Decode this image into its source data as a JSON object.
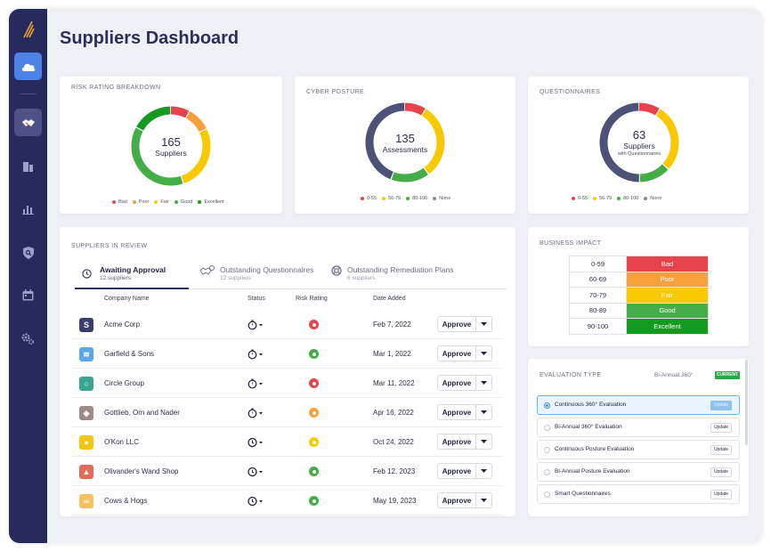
{
  "page": {
    "title": "Suppliers Dashboard"
  },
  "sidebar": {
    "items": [
      {
        "icon": "cloud-icon"
      },
      {
        "icon": "handshake-icon"
      },
      {
        "icon": "building-icon"
      },
      {
        "icon": "bar-chart-icon"
      },
      {
        "icon": "shield-search-icon"
      },
      {
        "icon": "calendar-icon"
      },
      {
        "icon": "settings-icon"
      }
    ]
  },
  "colors": {
    "bad": "#e8434d",
    "poor": "#f8a03c",
    "fair": "#f9c900",
    "good": "#45ad47",
    "excellent": "#149a1f",
    "none": "#4d5378",
    "navy": "#272a5c",
    "accent": "#4a82e6"
  },
  "risk_breakdown": {
    "title": "Risk Rating Breakdown",
    "count": "165",
    "label": "Suppliers",
    "legend": [
      "Bad",
      "Poor",
      "Fair",
      "Good",
      "Excellent"
    ],
    "segments": [
      {
        "name": "Bad",
        "value": 0.08,
        "color": "#e8434d"
      },
      {
        "name": "Poor",
        "value": 0.1,
        "color": "#f8a03c"
      },
      {
        "name": "Fair",
        "value": 0.27,
        "color": "#f9c900"
      },
      {
        "name": "Good",
        "value": 0.38,
        "color": "#45ad47"
      },
      {
        "name": "Excellent",
        "value": 0.17,
        "color": "#149a1f"
      }
    ]
  },
  "cyber_posture": {
    "title": "Cyber Posture",
    "count": "135",
    "label": "Assessments",
    "legend": [
      "0-55",
      "56-79",
      "80-100",
      "None"
    ],
    "segments": [
      {
        "name": "0-55",
        "value": 0.09,
        "color": "#e8434d"
      },
      {
        "name": "56-79",
        "value": 0.31,
        "color": "#f9c900"
      },
      {
        "name": "80-100",
        "value": 0.16,
        "color": "#45ad47"
      },
      {
        "name": "None",
        "value": 0.44,
        "color": "#4d5378"
      }
    ]
  },
  "questionnaires": {
    "title": "Questionnaires",
    "count": "63",
    "label": "Suppliers",
    "sublabel": "with Questionnaires",
    "legend": [
      "0-55",
      "56-79",
      "80-100",
      "None"
    ],
    "segments": [
      {
        "name": "0-55",
        "value": 0.09,
        "color": "#e8434d"
      },
      {
        "name": "56-79",
        "value": 0.28,
        "color": "#f9c900"
      },
      {
        "name": "80-100",
        "value": 0.13,
        "color": "#45ad47"
      },
      {
        "name": "None",
        "value": 0.5,
        "color": "#4d5378"
      }
    ]
  },
  "review": {
    "title": "Suppliers in Review",
    "tabs": [
      {
        "label": "Awaiting Approval",
        "sub": "12 suppliers",
        "icon": "clock-icon"
      },
      {
        "label": "Outstanding Questionnaires",
        "sub": "12 suppliers",
        "icon": "questionnaire-icon"
      },
      {
        "label": "Outstanding Remediation Plans",
        "sub": "6 suppliers",
        "icon": "lifebuoy-icon"
      }
    ],
    "columns": [
      "Company Name",
      "Status",
      "Risk Rating",
      "Date Added"
    ],
    "approve_label": "Approve",
    "rows": [
      {
        "name": "Acme Corp",
        "date": "Feb 7, 2022",
        "risk": "#e8434d",
        "logo_color": "#3a3f6e",
        "logo_char": "S",
        "status": "timer"
      },
      {
        "name": "Garfield & Sons",
        "date": "Mar 1, 2022",
        "risk": "#45ad47",
        "logo_color": "#5da8e4",
        "logo_char": "≋",
        "status": "timer"
      },
      {
        "name": "Circle Group",
        "date": "Mar 11, 2022",
        "risk": "#e8434d",
        "logo_color": "#3aa58f",
        "logo_char": "○",
        "status": "timer"
      },
      {
        "name": "Gottlieb, Orn and Nader",
        "date": "Apr 16, 2022",
        "risk": "#f8a03c",
        "logo_color": "#9e8a86",
        "logo_char": "◆",
        "status": "timer"
      },
      {
        "name": "O'Kon LLC",
        "date": "Oct 24, 2022",
        "risk": "#f9c900",
        "logo_color": "#f5c40f",
        "logo_char": "●",
        "status": "clock"
      },
      {
        "name": "Olivander's Wand Shop",
        "date": "Feb 12, 2023",
        "risk": "#45ad47",
        "logo_color": "#e26b5a",
        "logo_char": "▲",
        "status": "clock"
      },
      {
        "name": "Cows & Hogs",
        "date": "May 19, 2023",
        "risk": "#45ad47",
        "logo_color": "#f7c15e",
        "logo_char": "∞",
        "status": "clock"
      }
    ]
  },
  "business_impact": {
    "title": "Business Impact",
    "rows": [
      {
        "range": "0-59",
        "label": "Bad",
        "color": "#e8434d"
      },
      {
        "range": "60-69",
        "label": "Poor",
        "color": "#f8a03c"
      },
      {
        "range": "70-79",
        "label": "Fair",
        "color": "#f9c900"
      },
      {
        "range": "80-89",
        "label": "Good",
        "color": "#45ad47"
      },
      {
        "range": "90-100",
        "label": "Excellent",
        "color": "#149a1f"
      }
    ]
  },
  "evaluation": {
    "title": "Evaluation Type",
    "current_value": "Bi-Annual 360°",
    "current_badge": "CURRENT",
    "update_label": "Update",
    "options": [
      {
        "label": "Continuous 360° Evaluation",
        "selected": true
      },
      {
        "label": "Bi-Annual 360° Evaluation",
        "selected": false
      },
      {
        "label": "Continuous Posture Evaluation",
        "selected": false
      },
      {
        "label": "Bi-Annual Posture Evaluation",
        "selected": false
      },
      {
        "label": "Smart Questionnaires",
        "selected": false
      }
    ]
  }
}
